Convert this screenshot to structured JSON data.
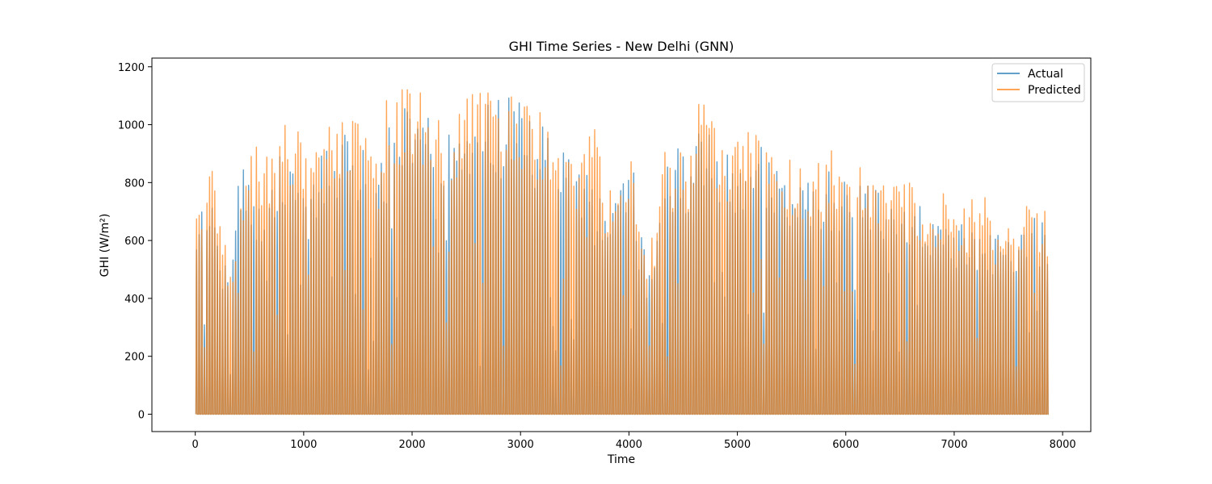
{
  "chart_data": {
    "type": "line",
    "title": "GHI Time Series - New Delhi (GNN)",
    "xlabel": "Time",
    "ylabel": "GHI (W/m²)",
    "xlim": [
      -400,
      8260
    ],
    "ylim": [
      -60,
      1230
    ],
    "xticks": [
      0,
      1000,
      2000,
      3000,
      4000,
      5000,
      6000,
      7000,
      8000
    ],
    "yticks": [
      0,
      200,
      400,
      600,
      800,
      1000,
      1200
    ],
    "grid": false,
    "legend_position": "top-right",
    "n_points": 7872,
    "hours_per_day": 24,
    "series": [
      {
        "name": "Actual",
        "color": "#1f77b4",
        "opacity": 0.7,
        "daily_peak_envelope": [
          [
            0,
            700
          ],
          [
            80,
            780
          ],
          [
            160,
            760
          ],
          [
            240,
            520
          ],
          [
            320,
            540
          ],
          [
            400,
            860
          ],
          [
            480,
            860
          ],
          [
            560,
            700
          ],
          [
            640,
            880
          ],
          [
            720,
            880
          ],
          [
            800,
            900
          ],
          [
            880,
            920
          ],
          [
            960,
            940
          ],
          [
            1040,
            760
          ],
          [
            1120,
            920
          ],
          [
            1200,
            960
          ],
          [
            1280,
            990
          ],
          [
            1360,
            980
          ],
          [
            1440,
            1000
          ],
          [
            1520,
            960
          ],
          [
            1600,
            980
          ],
          [
            1680,
            840
          ],
          [
            1760,
            980
          ],
          [
            1840,
            1040
          ],
          [
            1920,
            1060
          ],
          [
            2000,
            1050
          ],
          [
            2080,
            1060
          ],
          [
            2160,
            1070
          ],
          [
            2240,
            1040
          ],
          [
            2320,
            960
          ],
          [
            2400,
            1000
          ],
          [
            2480,
            1040
          ],
          [
            2560,
            1100
          ],
          [
            2640,
            1080
          ],
          [
            2720,
            1120
          ],
          [
            2800,
            1080
          ],
          [
            2880,
            1100
          ],
          [
            2960,
            1080
          ],
          [
            3040,
            1070
          ],
          [
            3120,
            1020
          ],
          [
            3200,
            1000
          ],
          [
            3280,
            960
          ],
          [
            3360,
            960
          ],
          [
            3440,
            940
          ],
          [
            3520,
            880
          ],
          [
            3600,
            900
          ],
          [
            3680,
            760
          ],
          [
            3760,
            760
          ],
          [
            3840,
            760
          ],
          [
            3920,
            800
          ],
          [
            4000,
            960
          ],
          [
            4080,
            660
          ],
          [
            4160,
            520
          ],
          [
            4240,
            580
          ],
          [
            4320,
            940
          ],
          [
            4400,
            880
          ],
          [
            4480,
            960
          ],
          [
            4560,
            860
          ],
          [
            4640,
            1040
          ],
          [
            4720,
            1000
          ],
          [
            4800,
            940
          ],
          [
            4880,
            900
          ],
          [
            4960,
            920
          ],
          [
            5040,
            880
          ],
          [
            5120,
            920
          ],
          [
            5200,
            960
          ],
          [
            5280,
            940
          ],
          [
            5360,
            900
          ],
          [
            5440,
            880
          ],
          [
            5520,
            820
          ],
          [
            5600,
            780
          ],
          [
            5680,
            860
          ],
          [
            5760,
            840
          ],
          [
            5840,
            840
          ],
          [
            5920,
            840
          ],
          [
            6000,
            840
          ],
          [
            6080,
            820
          ],
          [
            6160,
            820
          ],
          [
            6240,
            800
          ],
          [
            6320,
            780
          ],
          [
            6400,
            780
          ],
          [
            6480,
            760
          ],
          [
            6560,
            760
          ],
          [
            6640,
            740
          ],
          [
            6720,
            720
          ],
          [
            6800,
            720
          ],
          [
            6880,
            700
          ],
          [
            6960,
            680
          ],
          [
            7040,
            660
          ],
          [
            7120,
            660
          ],
          [
            7200,
            640
          ],
          [
            7280,
            660
          ],
          [
            7360,
            620
          ],
          [
            7440,
            640
          ],
          [
            7520,
            640
          ],
          [
            7600,
            660
          ],
          [
            7680,
            680
          ],
          [
            7760,
            680
          ],
          [
            7840,
            660
          ],
          [
            7872,
            660
          ]
        ]
      },
      {
        "name": "Predicted",
        "color": "#ff7f0e",
        "opacity": 0.7,
        "daily_peak_envelope": [
          [
            0,
            715
          ],
          [
            80,
            810
          ],
          [
            160,
            910
          ],
          [
            240,
            700
          ],
          [
            320,
            480
          ],
          [
            400,
            870
          ],
          [
            480,
            880
          ],
          [
            560,
            930
          ],
          [
            640,
            900
          ],
          [
            720,
            1060
          ],
          [
            800,
            1040
          ],
          [
            880,
            910
          ],
          [
            960,
            1050
          ],
          [
            1040,
            870
          ],
          [
            1120,
            1010
          ],
          [
            1200,
            1030
          ],
          [
            1280,
            1060
          ],
          [
            1360,
            1080
          ],
          [
            1440,
            1090
          ],
          [
            1520,
            1020
          ],
          [
            1600,
            1080
          ],
          [
            1680,
            890
          ],
          [
            1760,
            1120
          ],
          [
            1840,
            1100
          ],
          [
            1920,
            1140
          ],
          [
            2000,
            1120
          ],
          [
            2080,
            1110
          ],
          [
            2160,
            1130
          ],
          [
            2240,
            1100
          ],
          [
            2320,
            1040
          ],
          [
            2400,
            1080
          ],
          [
            2480,
            1110
          ],
          [
            2560,
            1160
          ],
          [
            2640,
            1120
          ],
          [
            2720,
            1160
          ],
          [
            2800,
            1170
          ],
          [
            2880,
            1150
          ],
          [
            2960,
            1120
          ],
          [
            3040,
            1110
          ],
          [
            3120,
            1080
          ],
          [
            3200,
            1060
          ],
          [
            3280,
            1040
          ],
          [
            3360,
            1040
          ],
          [
            3440,
            1000
          ],
          [
            3520,
            920
          ],
          [
            3600,
            950
          ],
          [
            3680,
            1000
          ],
          [
            3760,
            800
          ],
          [
            3840,
            860
          ],
          [
            3920,
            880
          ],
          [
            4000,
            940
          ],
          [
            4080,
            640
          ],
          [
            4160,
            600
          ],
          [
            4240,
            640
          ],
          [
            4320,
            980
          ],
          [
            4400,
            940
          ],
          [
            4480,
            1000
          ],
          [
            4560,
            900
          ],
          [
            4640,
            1090
          ],
          [
            4720,
            1140
          ],
          [
            4800,
            1000
          ],
          [
            4880,
            960
          ],
          [
            4960,
            980
          ],
          [
            5040,
            950
          ],
          [
            5120,
            990
          ],
          [
            5200,
            1000
          ],
          [
            5280,
            970
          ],
          [
            5360,
            930
          ],
          [
            5440,
            900
          ],
          [
            5520,
            860
          ],
          [
            5600,
            840
          ],
          [
            5680,
            880
          ],
          [
            5760,
            870
          ],
          [
            5840,
            980
          ],
          [
            5920,
            900
          ],
          [
            6000,
            850
          ],
          [
            6080,
            860
          ],
          [
            6160,
            850
          ],
          [
            6240,
            860
          ],
          [
            6320,
            880
          ],
          [
            6400,
            830
          ],
          [
            6480,
            840
          ],
          [
            6560,
            830
          ],
          [
            6640,
            800
          ],
          [
            6720,
            780
          ],
          [
            6800,
            760
          ],
          [
            6880,
            770
          ],
          [
            6960,
            740
          ],
          [
            7040,
            720
          ],
          [
            7120,
            740
          ],
          [
            7200,
            790
          ],
          [
            7280,
            820
          ],
          [
            7360,
            680
          ],
          [
            7440,
            660
          ],
          [
            7520,
            700
          ],
          [
            7600,
            720
          ],
          [
            7680,
            740
          ],
          [
            7760,
            740
          ],
          [
            7840,
            700
          ],
          [
            7872,
            620
          ]
        ]
      }
    ]
  }
}
